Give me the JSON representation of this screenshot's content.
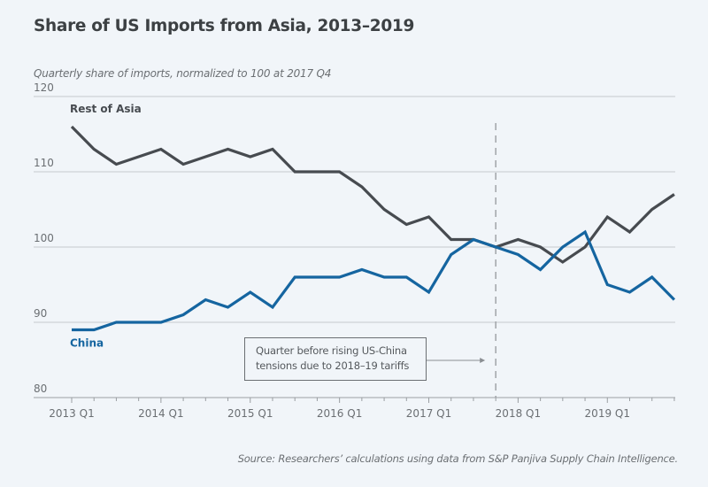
{
  "header": {
    "title": "Share of US Imports from Asia, 2013–2019",
    "subtitle": "Quarterly share of imports, normalized to 100 at 2017 Q4"
  },
  "footer": {
    "source": "Source: Researchers’ calculations using data from S&P Panjiva Supply Chain Intelligence."
  },
  "colors": {
    "background": "#f1f5f9",
    "rest_of_asia": "#474b50",
    "china": "#1565a0",
    "grid": "#c5c9cd",
    "axis": "#9a9ea2",
    "reference_line": "#a0a4a8"
  },
  "chart_data": {
    "type": "line",
    "title": "Share of US Imports from Asia, 2013–2019",
    "subtitle": "Quarterly share of imports, normalized to 100 at 2017 Q4",
    "xlabel": "",
    "ylabel": "",
    "ylim": [
      80,
      120
    ],
    "yticks": [
      80,
      90,
      100,
      110,
      120
    ],
    "grid": true,
    "x": [
      "2013 Q1",
      "2013 Q2",
      "2013 Q3",
      "2013 Q4",
      "2014 Q1",
      "2014 Q2",
      "2014 Q3",
      "2014 Q4",
      "2015 Q1",
      "2015 Q2",
      "2015 Q3",
      "2015 Q4",
      "2016 Q1",
      "2016 Q2",
      "2016 Q3",
      "2016 Q4",
      "2017 Q1",
      "2017 Q2",
      "2017 Q3",
      "2017 Q4",
      "2018 Q1",
      "2018 Q2",
      "2018 Q3",
      "2018 Q4",
      "2019 Q1",
      "2019 Q2",
      "2019 Q3",
      "2019 Q4"
    ],
    "xtick_labels": [
      "2013 Q1",
      "2014 Q1",
      "2015 Q1",
      "2016 Q1",
      "2017 Q1",
      "2018 Q1",
      "2019 Q1"
    ],
    "series": [
      {
        "name": "Rest of Asia",
        "label_position": "above start",
        "values": [
          116,
          113,
          111,
          112,
          113,
          111,
          112,
          113,
          112,
          113,
          110,
          110,
          110,
          108,
          105,
          103,
          104,
          101,
          101,
          100,
          101,
          100,
          98,
          100,
          104,
          102,
          105,
          107
        ]
      },
      {
        "name": "China",
        "label_position": "below start",
        "values": [
          89,
          89,
          90,
          90,
          90,
          91,
          93,
          92,
          94,
          92,
          96,
          96,
          96,
          97,
          96,
          96,
          94,
          99,
          101,
          100,
          99,
          97,
          100,
          102,
          95,
          94,
          96,
          93
        ]
      }
    ],
    "reference_line": {
      "x": "2017 Q4",
      "style": "dashed"
    },
    "annotations": [
      {
        "text_line1": "Quarter before rising US-China",
        "text_line2": "tensions due to 2018–19 tariffs",
        "points_to": "2017 Q4"
      }
    ]
  }
}
